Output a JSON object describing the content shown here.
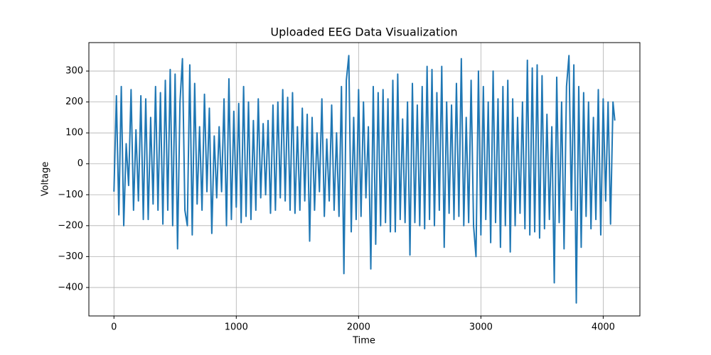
{
  "chart_data": {
    "type": "line",
    "title": "Uploaded EEG Data Visualization",
    "xlabel": "Time",
    "ylabel": "Voltage",
    "color": "#1f77b4",
    "grid": true,
    "xlim": [
      -205,
      4300
    ],
    "ylim": [
      -492,
      392
    ],
    "xticks": [
      0,
      1000,
      2000,
      3000,
      4000
    ],
    "yticks": [
      {
        "value": -400,
        "label": "−400"
      },
      {
        "value": -300,
        "label": "−300"
      },
      {
        "value": -200,
        "label": "−200"
      },
      {
        "value": -100,
        "label": "−100"
      },
      0,
      100,
      200,
      300
    ],
    "x": [
      0,
      20,
      40,
      60,
      80,
      100,
      120,
      140,
      160,
      180,
      200,
      220,
      240,
      260,
      280,
      300,
      320,
      340,
      360,
      380,
      400,
      420,
      440,
      460,
      480,
      500,
      520,
      540,
      560,
      580,
      600,
      620,
      640,
      660,
      680,
      700,
      720,
      740,
      760,
      780,
      800,
      820,
      840,
      860,
      880,
      900,
      920,
      940,
      960,
      980,
      1000,
      1020,
      1040,
      1060,
      1080,
      1100,
      1120,
      1140,
      1160,
      1180,
      1200,
      1220,
      1240,
      1260,
      1280,
      1300,
      1320,
      1340,
      1360,
      1380,
      1400,
      1420,
      1440,
      1460,
      1480,
      1500,
      1520,
      1540,
      1560,
      1580,
      1600,
      1620,
      1640,
      1660,
      1680,
      1700,
      1720,
      1740,
      1760,
      1780,
      1800,
      1820,
      1840,
      1860,
      1880,
      1900,
      1920,
      1940,
      1960,
      1980,
      2000,
      2020,
      2040,
      2060,
      2080,
      2100,
      2120,
      2140,
      2160,
      2180,
      2200,
      2220,
      2240,
      2260,
      2280,
      2300,
      2320,
      2340,
      2360,
      2380,
      2400,
      2420,
      2440,
      2460,
      2480,
      2500,
      2520,
      2540,
      2560,
      2580,
      2600,
      2620,
      2640,
      2660,
      2680,
      2700,
      2720,
      2740,
      2760,
      2780,
      2800,
      2820,
      2840,
      2860,
      2880,
      2900,
      2920,
      2940,
      2960,
      2980,
      3000,
      3020,
      3040,
      3060,
      3080,
      3100,
      3120,
      3140,
      3160,
      3180,
      3200,
      3220,
      3240,
      3260,
      3280,
      3300,
      3320,
      3340,
      3360,
      3380,
      3400,
      3420,
      3440,
      3460,
      3480,
      3500,
      3520,
      3540,
      3560,
      3580,
      3600,
      3620,
      3640,
      3660,
      3680,
      3700,
      3720,
      3740,
      3760,
      3780,
      3800,
      3820,
      3840,
      3860,
      3880,
      3900,
      3920,
      3940,
      3960,
      3980,
      4000,
      4020,
      4040,
      4060,
      4080,
      4095
    ],
    "values": [
      -90,
      220,
      -165,
      250,
      -200,
      65,
      -70,
      240,
      -150,
      110,
      -120,
      220,
      -180,
      210,
      -180,
      150,
      -130,
      250,
      -150,
      230,
      -195,
      270,
      -150,
      305,
      -200,
      290,
      -275,
      200,
      340,
      -150,
      -200,
      320,
      -230,
      260,
      -130,
      120,
      -150,
      225,
      -90,
      180,
      -225,
      90,
      -110,
      120,
      -90,
      210,
      -200,
      275,
      -180,
      170,
      -140,
      195,
      -190,
      250,
      -170,
      200,
      -180,
      140,
      -150,
      210,
      -110,
      130,
      -100,
      140,
      -160,
      190,
      -150,
      200,
      -110,
      240,
      -120,
      215,
      -150,
      230,
      -160,
      120,
      -150,
      180,
      -120,
      160,
      -250,
      150,
      -150,
      100,
      -90,
      210,
      -170,
      80,
      -120,
      190,
      -150,
      100,
      -170,
      250,
      -355,
      270,
      350,
      -220,
      150,
      -180,
      240,
      -170,
      200,
      -110,
      120,
      -340,
      250,
      -260,
      230,
      -200,
      240,
      -190,
      210,
      -220,
      270,
      -220,
      290,
      -180,
      145,
      -190,
      200,
      -295,
      260,
      -190,
      190,
      -200,
      250,
      -210,
      315,
      -180,
      305,
      -200,
      230,
      -150,
      315,
      -270,
      200,
      -160,
      190,
      -180,
      260,
      -170,
      340,
      -200,
      150,
      -190,
      270,
      -200,
      -300,
      300,
      -230,
      250,
      -180,
      200,
      -255,
      300,
      -190,
      210,
      -270,
      250,
      -200,
      270,
      -285,
      210,
      -200,
      150,
      -160,
      200,
      -210,
      335,
      -230,
      310,
      -220,
      320,
      -240,
      285,
      -210,
      160,
      -180,
      120,
      -385,
      280,
      -190,
      200,
      -275,
      250,
      350,
      -150,
      320,
      -450,
      250,
      -270,
      230,
      -170,
      200,
      -210,
      150,
      -180,
      240,
      -230,
      210,
      -120,
      200,
      -195,
      200,
      140
    ]
  }
}
